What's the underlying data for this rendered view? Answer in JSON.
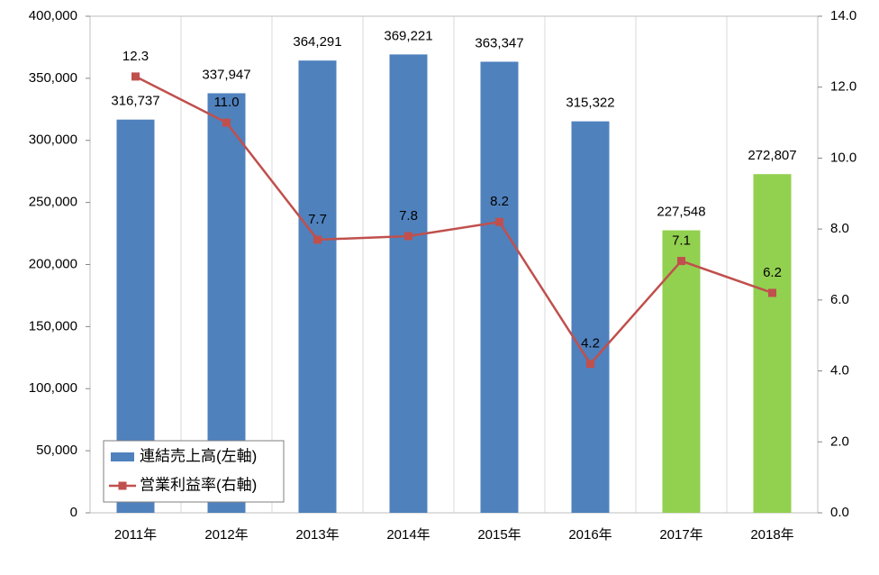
{
  "chart_data": {
    "type": "bar-line",
    "categories": [
      "2011年",
      "2012年",
      "2013年",
      "2014年",
      "2015年",
      "2016年",
      "2017年",
      "2018年"
    ],
    "series": [
      {
        "name": "連結売上高(左軸)",
        "type": "bar",
        "color": "#4f81bd",
        "colors": [
          "#4f81bd",
          "#4f81bd",
          "#4f81bd",
          "#4f81bd",
          "#4f81bd",
          "#4f81bd",
          "#92d050",
          "#92d050"
        ],
        "values": [
          316737,
          337947,
          364291,
          369221,
          363347,
          315322,
          227548,
          272807
        ],
        "value_labels": [
          "316,737",
          "337,947",
          "364,291",
          "369,221",
          "363,347",
          "315,322",
          "227,548",
          "272,807"
        ]
      },
      {
        "name": "営業利益率(右軸)",
        "type": "line",
        "axis": "y2",
        "color": "#c0504d",
        "marker": "square",
        "values": [
          12.3,
          11.0,
          7.7,
          7.8,
          8.2,
          4.2,
          7.1,
          6.2
        ],
        "value_labels": [
          "12.3",
          "11.0",
          "7.7",
          "7.8",
          "8.2",
          "4.2",
          "7.1",
          "6.2"
        ]
      }
    ],
    "ylim": [
      0,
      400000
    ],
    "yticks": [
      {
        "value": 0,
        "label": "0"
      },
      {
        "value": 50000,
        "label": "50,000"
      },
      {
        "value": 100000,
        "label": "100,000"
      },
      {
        "value": 150000,
        "label": "150,000"
      },
      {
        "value": 200000,
        "label": "200,000"
      },
      {
        "value": 250000,
        "label": "250,000"
      },
      {
        "value": 300000,
        "label": "300,000"
      },
      {
        "value": 350000,
        "label": "350,000"
      },
      {
        "value": 400000,
        "label": "400,000"
      }
    ],
    "y2lim": [
      0,
      14
    ],
    "y2ticks": [
      {
        "value": 0,
        "label": "0.0"
      },
      {
        "value": 2,
        "label": "2.0"
      },
      {
        "value": 4,
        "label": "4.0"
      },
      {
        "value": 6,
        "label": "6.0"
      },
      {
        "value": 8,
        "label": "8.0"
      },
      {
        "value": 10,
        "label": "10.0"
      },
      {
        "value": 12,
        "label": "12.0"
      },
      {
        "value": 14,
        "label": "14.0"
      }
    ],
    "legend": "lower left"
  }
}
